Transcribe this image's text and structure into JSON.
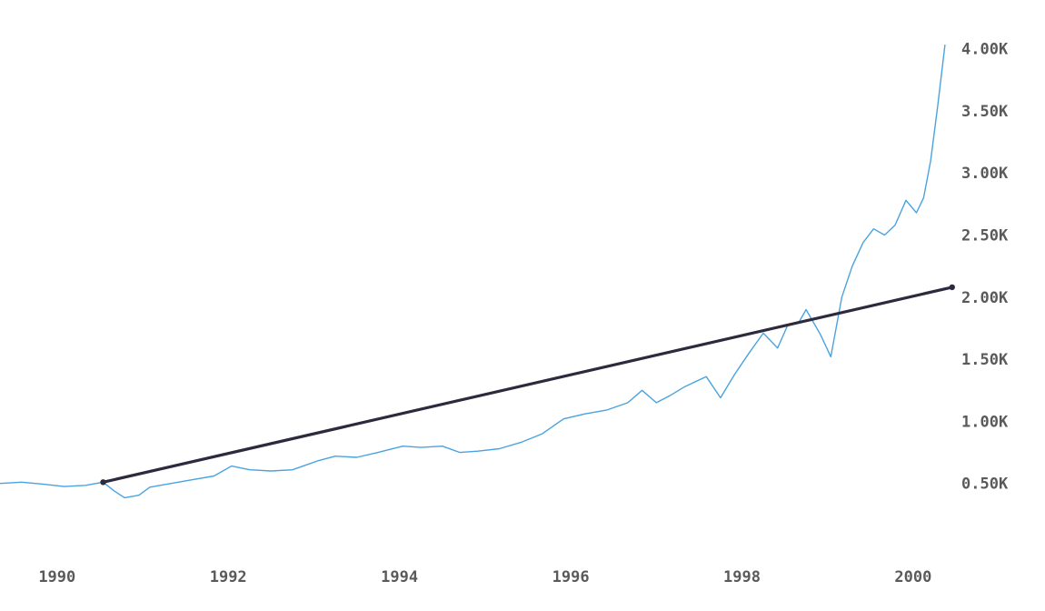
{
  "chart_data": {
    "type": "line",
    "title": "",
    "xlabel": "",
    "ylabel": "",
    "x_tick_labels": [
      "1990",
      "1992",
      "1994",
      "1996",
      "1998",
      "2000"
    ],
    "y_tick_labels": [
      "0.50K",
      "1.00K",
      "1.50K",
      "2.00K",
      "2.50K",
      "3.00K",
      "3.50K",
      "4.00K"
    ],
    "xlim": [
      "1989-05-01",
      "2000-07-01"
    ],
    "ylim": [
      0,
      4100
    ],
    "y_axis_position": "right",
    "grid": false,
    "legend": "none",
    "colors": {
      "price": "#4aa3df",
      "trend": "#2e2a3e"
    },
    "series": [
      {
        "values": [
          [
            "1989-05-01",
            500
          ],
          [
            "1989-08-01",
            510
          ],
          [
            "1989-11-01",
            495
          ],
          [
            "1990-02-01",
            475
          ],
          [
            "1990-05-01",
            485
          ],
          [
            "1990-07-15",
            510
          ],
          [
            "1990-09-01",
            440
          ],
          [
            "1990-10-15",
            385
          ],
          [
            "1990-12-15",
            405
          ],
          [
            "1991-02-01",
            470
          ],
          [
            "1991-05-01",
            500
          ],
          [
            "1991-08-01",
            530
          ],
          [
            "1991-11-01",
            560
          ],
          [
            "1992-01-15",
            640
          ],
          [
            "1992-04-01",
            610
          ],
          [
            "1992-07-01",
            600
          ],
          [
            "1992-10-01",
            610
          ],
          [
            "1993-01-15",
            680
          ],
          [
            "1993-04-01",
            720
          ],
          [
            "1993-07-01",
            710
          ],
          [
            "1993-10-01",
            750
          ],
          [
            "1994-01-15",
            800
          ],
          [
            "1994-04-01",
            790
          ],
          [
            "1994-07-01",
            800
          ],
          [
            "1994-09-15",
            750
          ],
          [
            "1994-12-01",
            760
          ],
          [
            "1995-03-01",
            780
          ],
          [
            "1995-06-01",
            830
          ],
          [
            "1995-09-01",
            900
          ],
          [
            "1995-12-01",
            1020
          ],
          [
            "1996-03-01",
            1060
          ],
          [
            "1996-06-01",
            1090
          ],
          [
            "1996-09-01",
            1150
          ],
          [
            "1996-11-01",
            1250
          ],
          [
            "1997-01-01",
            1150
          ],
          [
            "1997-03-01",
            1210
          ],
          [
            "1997-05-01",
            1280
          ],
          [
            "1997-08-01",
            1360
          ],
          [
            "1997-10-01",
            1190
          ],
          [
            "1997-12-01",
            1380
          ],
          [
            "1998-02-01",
            1550
          ],
          [
            "1998-04-01",
            1710
          ],
          [
            "1998-06-01",
            1590
          ],
          [
            "1998-07-15",
            1780
          ],
          [
            "1998-09-01",
            1800
          ],
          [
            "1998-10-01",
            1900
          ],
          [
            "1998-12-01",
            1700
          ],
          [
            "1999-01-15",
            1520
          ],
          [
            "1999-03-01",
            2000
          ],
          [
            "1999-04-15",
            2250
          ],
          [
            "1999-06-01",
            2440
          ],
          [
            "1999-07-15",
            2550
          ],
          [
            "1999-09-01",
            2500
          ],
          [
            "1999-10-15",
            2580
          ],
          [
            "1999-12-01",
            2780
          ],
          [
            "2000-01-15",
            2680
          ],
          [
            "2000-02-15",
            2800
          ],
          [
            "2000-03-15",
            3100
          ],
          [
            "2000-04-15",
            3550
          ],
          [
            "2000-05-15",
            4030
          ]
        ]
      },
      {
        "values": [
          [
            "1990-07-15",
            510
          ],
          [
            "2000-06-15",
            2080
          ]
        ]
      }
    ]
  }
}
